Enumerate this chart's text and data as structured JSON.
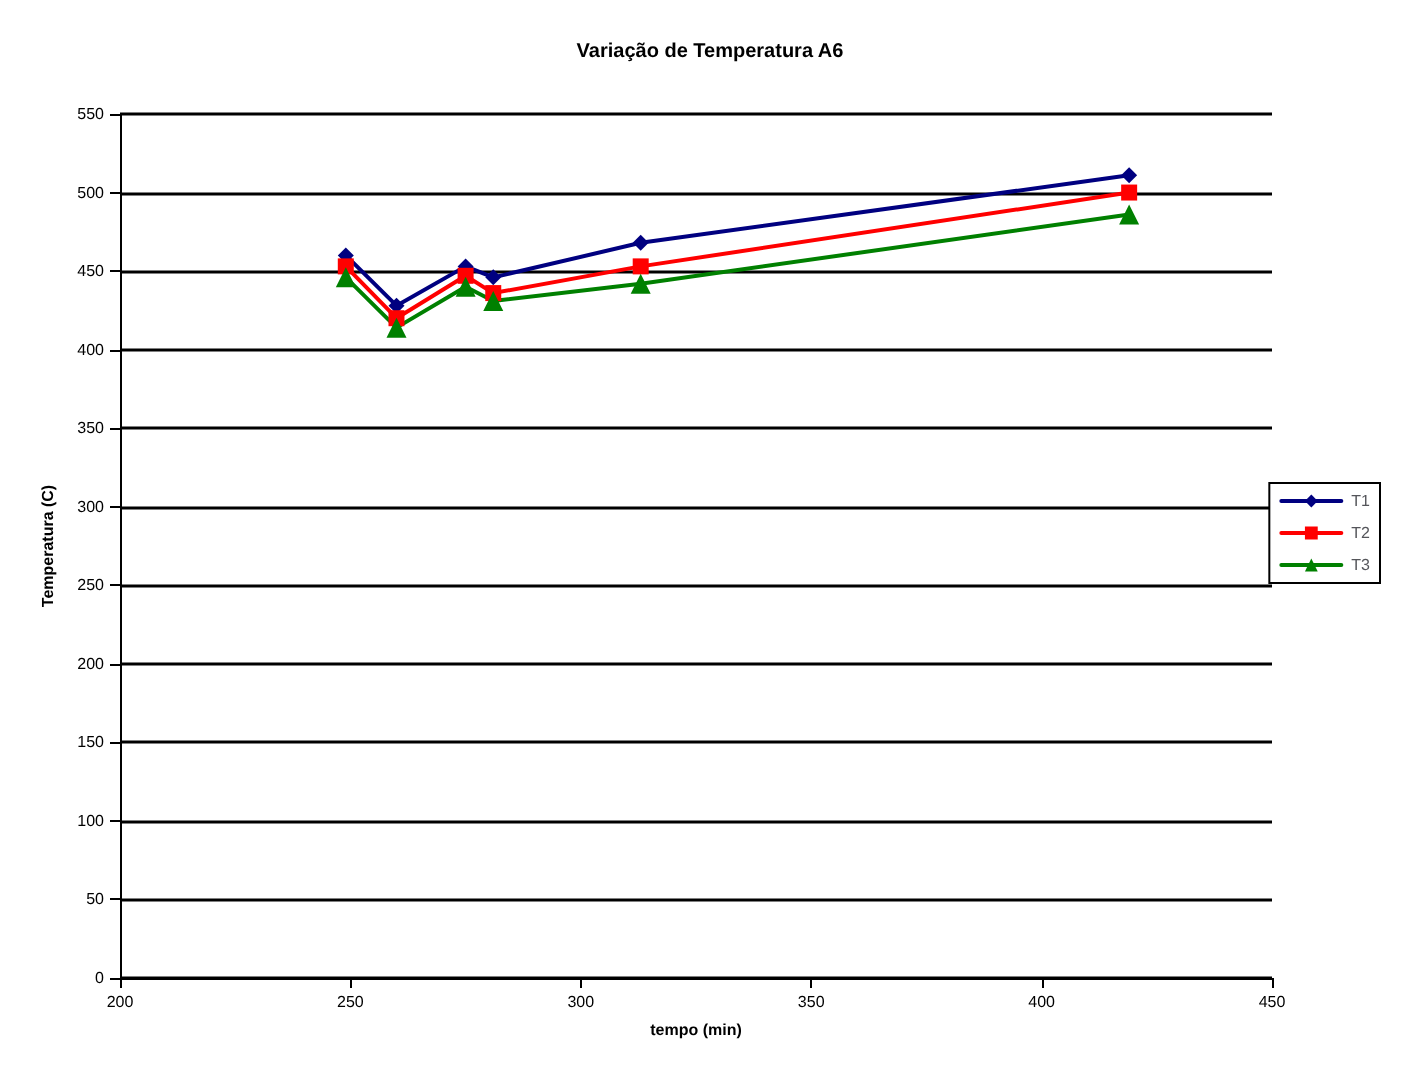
{
  "chart_data": {
    "type": "line",
    "title": "Variação de Temperatura A6",
    "xlabel": "tempo (min)",
    "ylabel": "Temperatura (C)",
    "x": [
      249,
      260,
      275,
      281,
      313,
      419
    ],
    "series": [
      {
        "name": "T1",
        "color": "#000080",
        "marker": "diamond",
        "values": [
          460,
          428,
          453,
          446,
          468,
          511
        ]
      },
      {
        "name": "T2",
        "color": "#ff0000",
        "marker": "square",
        "values": [
          453,
          420,
          447,
          436,
          453,
          500
        ]
      },
      {
        "name": "T3",
        "color": "#008000",
        "marker": "triangle",
        "values": [
          446,
          414,
          440,
          431,
          442,
          486
        ]
      }
    ],
    "xlim": [
      200,
      450
    ],
    "xticks": [
      200,
      250,
      300,
      350,
      400,
      450
    ],
    "ylim": [
      0,
      550
    ],
    "yticks": [
      0,
      50,
      100,
      150,
      200,
      250,
      300,
      350,
      400,
      450,
      500,
      550
    ],
    "grid": "y",
    "legend": "right",
    "line_style": "solid"
  }
}
